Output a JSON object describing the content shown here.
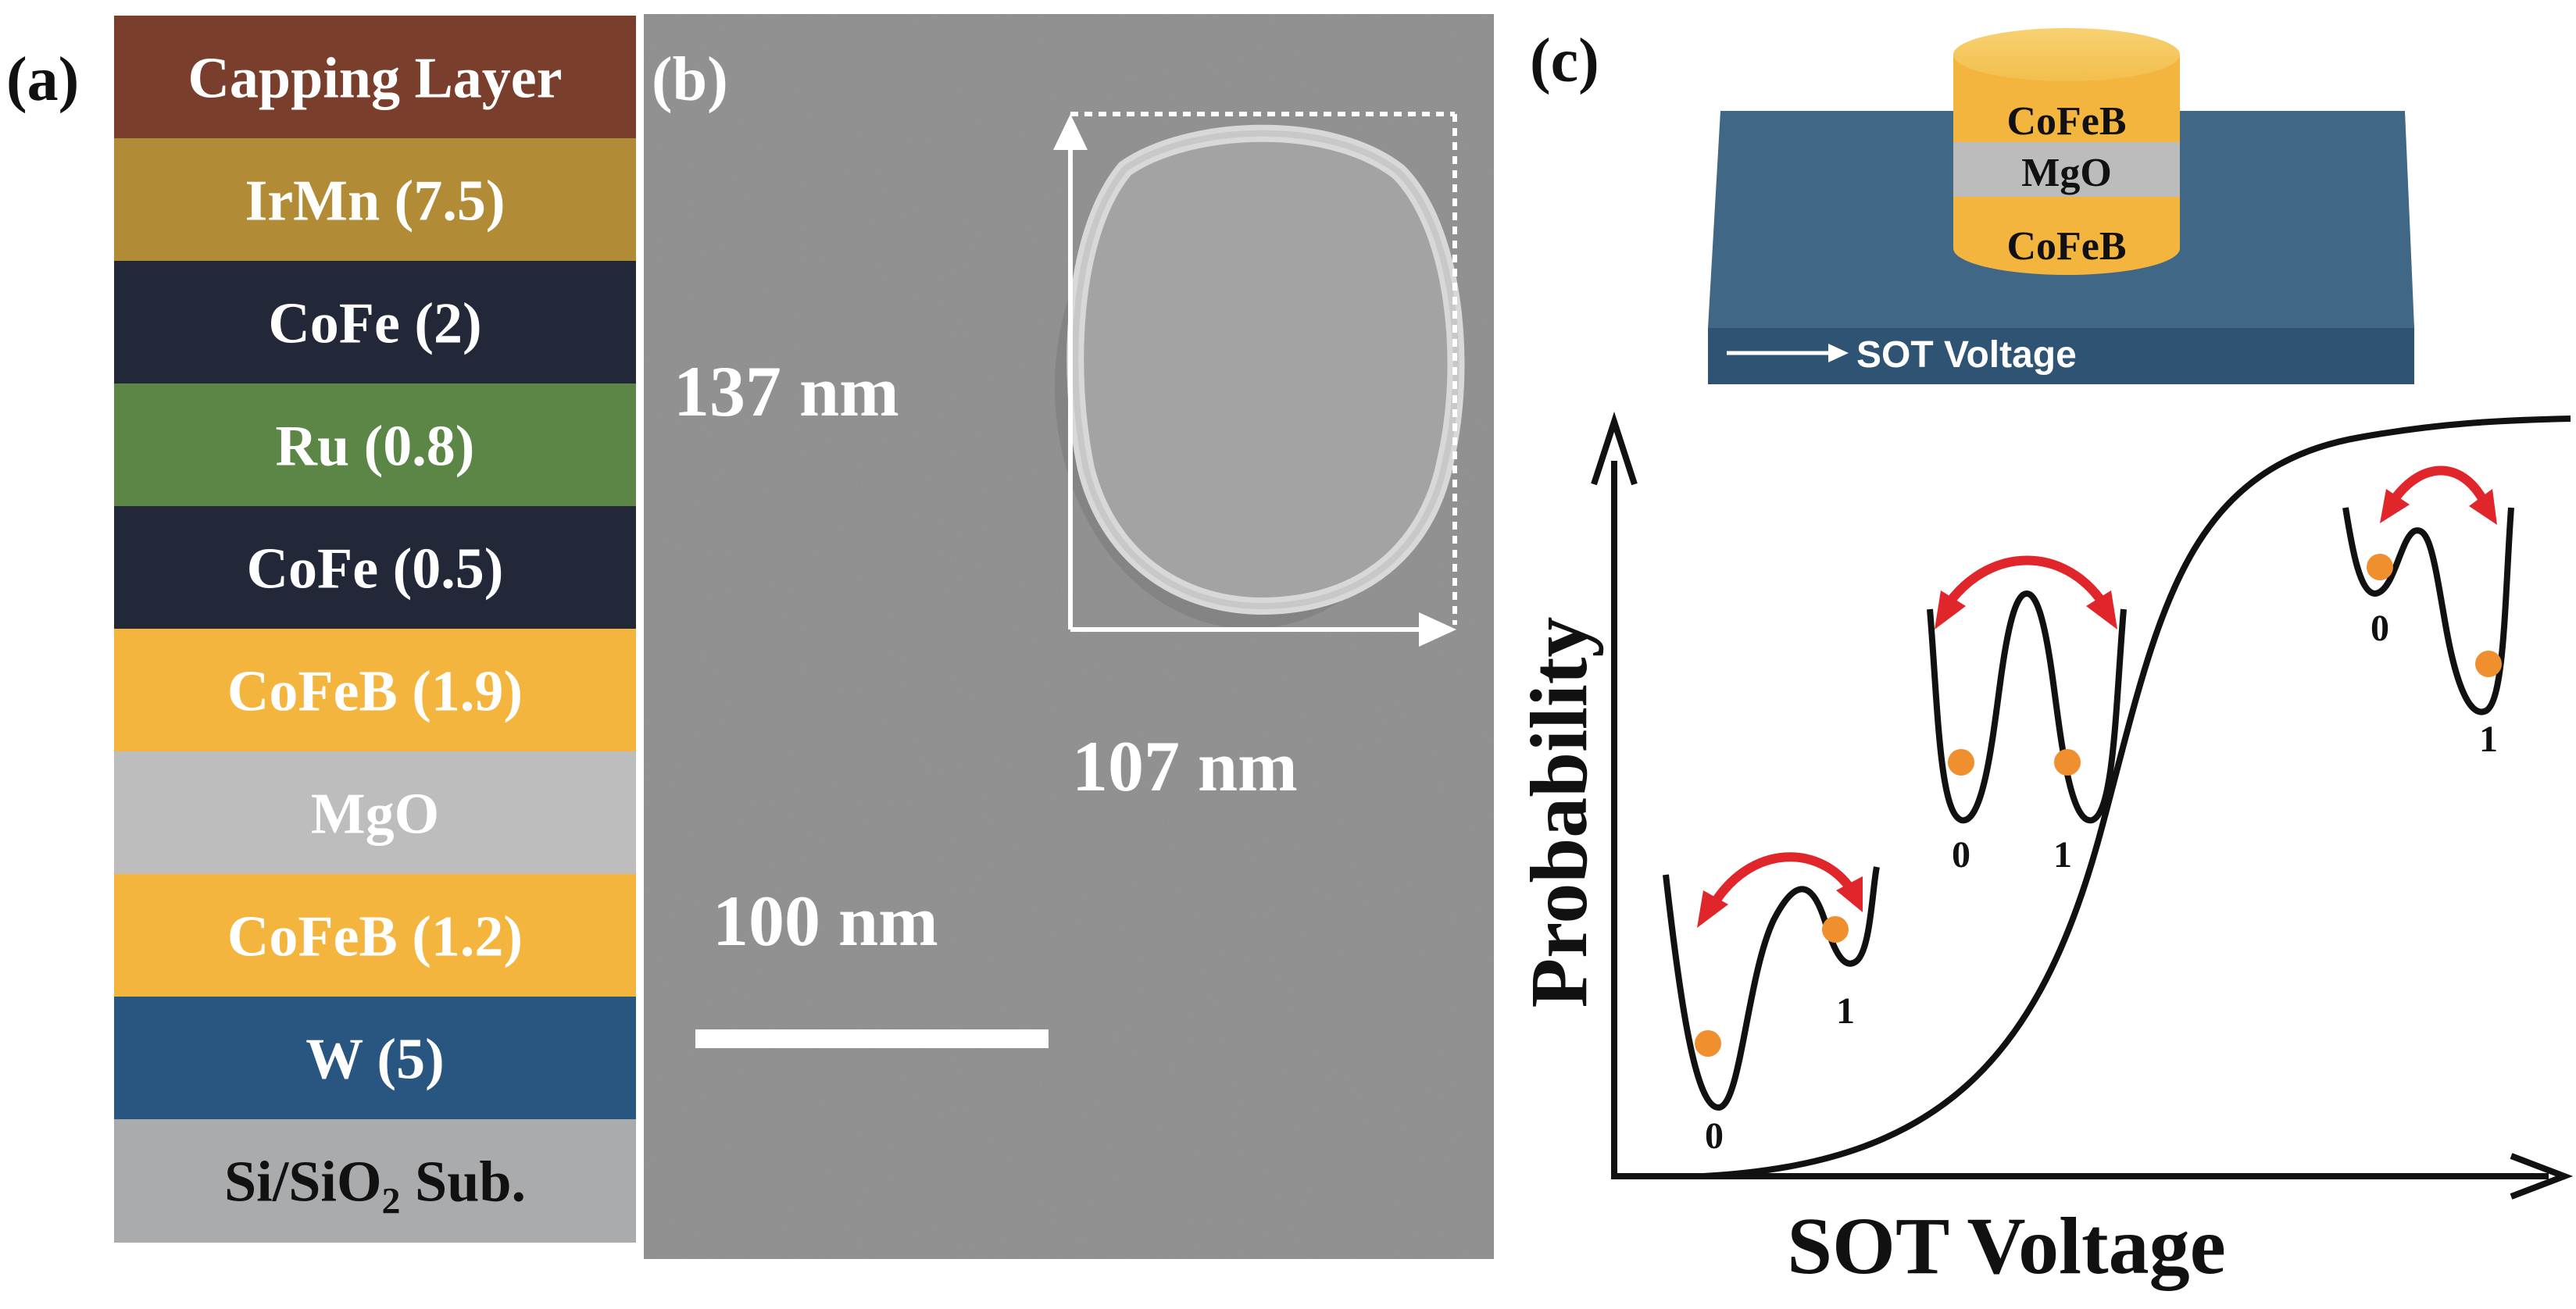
{
  "panels": {
    "a": {
      "label": "(a)",
      "layers": [
        {
          "label": "Capping Layer",
          "color": "#7a3e2c",
          "text_color": "#ffffff"
        },
        {
          "label": "IrMn (7.5)",
          "color": "#b18b35",
          "text_color": "#ffffff"
        },
        {
          "label": "CoFe (2)",
          "color": "#232838",
          "text_color": "#ffffff"
        },
        {
          "label": "Ru (0.8)",
          "color": "#5b8645",
          "text_color": "#ffffff"
        },
        {
          "label": "CoFe (0.5)",
          "color": "#232838",
          "text_color": "#ffffff"
        },
        {
          "label": "CoFeB (1.9)",
          "color": "#f4b53f",
          "text_color": "#ffffff"
        },
        {
          "label": "MgO",
          "color": "#bdbdbd",
          "text_color": "#ffffff"
        },
        {
          "label": "CoFeB (1.2)",
          "color": "#f4b53f",
          "text_color": "#ffffff"
        },
        {
          "label": "W (5)",
          "color": "#285680",
          "text_color": "#ffffff"
        },
        {
          "label": "Si/SiO",
          "subscript": "2",
          "suffix": " Sub.",
          "color": "#a9abad",
          "text_color": "#111111"
        }
      ]
    },
    "b": {
      "label": "(b)",
      "height_label": "137 nm",
      "width_label": "107 nm",
      "scalebar_label": "100 nm",
      "background": "#8f8f8f"
    },
    "c": {
      "label": "(c)",
      "device": {
        "top_layer": "CoFeB",
        "middle_layer": "MgO",
        "bottom_layer": "CoFeB",
        "channel_label": "SOT Voltage",
        "channel_color": "#406785",
        "cofeb_color": "#f4b53f",
        "mgo_color": "#bcbcbc"
      },
      "xlabel": "SOT Voltage",
      "ylabel": "Probability",
      "wells": [
        {
          "left_state": "0",
          "right_state": "1"
        },
        {
          "left_state": "0",
          "right_state": "1"
        },
        {
          "left_state": "0",
          "right_state": "1"
        }
      ],
      "ball_color": "#ef8f2e",
      "arrow_color": "#e0262b"
    }
  }
}
